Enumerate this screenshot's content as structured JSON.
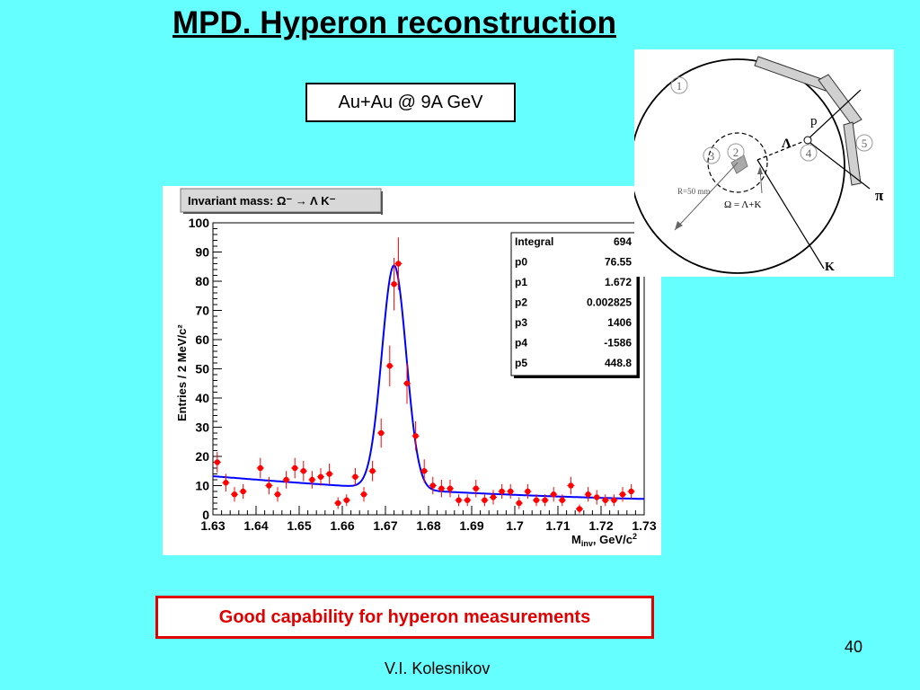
{
  "slide": {
    "title": "MPD. Hyperon reconstruction",
    "beam_label": "Au+Au @ 9A GeV",
    "caption": "Good capability for hyperon measurements",
    "page_number": "40",
    "author": "V.I. Kolesnikov"
  },
  "colors": {
    "background": "#66ffff",
    "data_points": "#ff0000",
    "fit_curve": "#0000ff",
    "caption": "#e00000"
  },
  "chart_data": {
    "type": "scatter",
    "title": "Invariant mass: Ω⁻ → Λ K⁻",
    "xlabel_main": "M",
    "xlabel_sub": "inv",
    "xlabel_rest": ", GeV/c",
    "xlabel_sup": "2",
    "ylabel": "Entries / 2 MeV/c²",
    "xlim": [
      1.63,
      1.73
    ],
    "ylim": [
      0,
      100
    ],
    "xticks": [
      "1.63",
      "1.64",
      "1.65",
      "1.66",
      "1.67",
      "1.68",
      "1.69",
      "1.7",
      "1.71",
      "1.72",
      "1.73"
    ],
    "yticks": [
      "0",
      "10",
      "20",
      "30",
      "40",
      "50",
      "60",
      "70",
      "80",
      "90",
      "100"
    ],
    "grid": false,
    "legend_position": "top-right",
    "stats": [
      {
        "name": "Integral",
        "value": "694"
      },
      {
        "name": "p0",
        "value": "76.55"
      },
      {
        "name": "p1",
        "value": "1.672"
      },
      {
        "name": "p2",
        "value": "0.002825"
      },
      {
        "name": "p3",
        "value": "1406"
      },
      {
        "name": "p4",
        "value": "-1586"
      },
      {
        "name": "p5",
        "value": "448.8"
      }
    ],
    "fit": {
      "amplitude": 76.55,
      "mean": 1.672,
      "sigma": 0.002825,
      "c0": 1406,
      "c1": -1586,
      "c2": 448.8
    },
    "points": [
      {
        "x": 1.631,
        "y": 18,
        "err": 3.5
      },
      {
        "x": 1.633,
        "y": 11,
        "err": 3
      },
      {
        "x": 1.635,
        "y": 7,
        "err": 2.5
      },
      {
        "x": 1.637,
        "y": 8,
        "err": 2.5
      },
      {
        "x": 1.641,
        "y": 16,
        "err": 3.5
      },
      {
        "x": 1.643,
        "y": 10,
        "err": 3
      },
      {
        "x": 1.645,
        "y": 7,
        "err": 2.5
      },
      {
        "x": 1.647,
        "y": 12,
        "err": 3
      },
      {
        "x": 1.649,
        "y": 16,
        "err": 3.5
      },
      {
        "x": 1.651,
        "y": 15,
        "err": 3.5
      },
      {
        "x": 1.653,
        "y": 12,
        "err": 3
      },
      {
        "x": 1.655,
        "y": 13,
        "err": 3
      },
      {
        "x": 1.657,
        "y": 14,
        "err": 3.5
      },
      {
        "x": 1.659,
        "y": 4,
        "err": 2
      },
      {
        "x": 1.661,
        "y": 5,
        "err": 2
      },
      {
        "x": 1.663,
        "y": 13,
        "err": 3
      },
      {
        "x": 1.665,
        "y": 7,
        "err": 2.5
      },
      {
        "x": 1.667,
        "y": 15,
        "err": 3.5
      },
      {
        "x": 1.669,
        "y": 28,
        "err": 5
      },
      {
        "x": 1.671,
        "y": 51,
        "err": 7
      },
      {
        "x": 1.672,
        "y": 79,
        "err": 9
      },
      {
        "x": 1.673,
        "y": 86,
        "err": 9
      },
      {
        "x": 1.675,
        "y": 45,
        "err": 7
      },
      {
        "x": 1.677,
        "y": 27,
        "err": 5
      },
      {
        "x": 1.679,
        "y": 15,
        "err": 4
      },
      {
        "x": 1.681,
        "y": 10,
        "err": 3
      },
      {
        "x": 1.683,
        "y": 9,
        "err": 3
      },
      {
        "x": 1.685,
        "y": 9,
        "err": 3
      },
      {
        "x": 1.687,
        "y": 5,
        "err": 2
      },
      {
        "x": 1.689,
        "y": 5,
        "err": 2
      },
      {
        "x": 1.691,
        "y": 9,
        "err": 3
      },
      {
        "x": 1.693,
        "y": 5,
        "err": 2
      },
      {
        "x": 1.695,
        "y": 6,
        "err": 2.5
      },
      {
        "x": 1.697,
        "y": 8,
        "err": 2.5
      },
      {
        "x": 1.699,
        "y": 8,
        "err": 2.5
      },
      {
        "x": 1.701,
        "y": 4,
        "err": 2
      },
      {
        "x": 1.703,
        "y": 8,
        "err": 2.5
      },
      {
        "x": 1.705,
        "y": 5,
        "err": 2
      },
      {
        "x": 1.707,
        "y": 5,
        "err": 2
      },
      {
        "x": 1.709,
        "y": 7,
        "err": 2.5
      },
      {
        "x": 1.711,
        "y": 5,
        "err": 2
      },
      {
        "x": 1.713,
        "y": 10,
        "err": 3
      },
      {
        "x": 1.715,
        "y": 2,
        "err": 1.5
      },
      {
        "x": 1.717,
        "y": 7,
        "err": 2.5
      },
      {
        "x": 1.719,
        "y": 6,
        "err": 2.5
      },
      {
        "x": 1.721,
        "y": 5,
        "err": 2
      },
      {
        "x": 1.723,
        "y": 5,
        "err": 2
      },
      {
        "x": 1.725,
        "y": 7,
        "err": 2.5
      },
      {
        "x": 1.727,
        "y": 8,
        "err": 2.5
      }
    ]
  },
  "diagram": {
    "labels": {
      "region_1": "1",
      "region_2": "2",
      "region_3": "3",
      "region_4": "4",
      "region_5": "5",
      "proton": "p",
      "lambda": "Λ",
      "pion": "π",
      "kaon": "K",
      "radius": "R=50 mm",
      "decay": "Ω = Λ+K"
    }
  }
}
